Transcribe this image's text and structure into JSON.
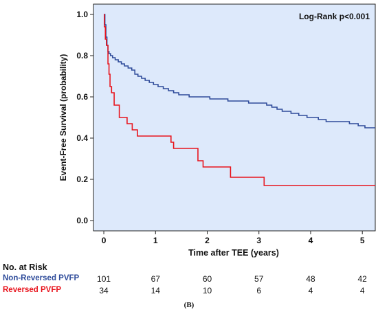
{
  "chart_data": {
    "type": "line",
    "title": "",
    "xlabel": "Time after TEE (years)",
    "ylabel": "Event-Free Survival (probability)",
    "xlim": [
      -0.2,
      5.25
    ],
    "ylim": [
      -0.05,
      1.05
    ],
    "x_ticks": [
      0,
      1,
      2,
      3,
      4,
      5
    ],
    "y_ticks": [
      0.0,
      0.2,
      0.4,
      0.6,
      0.8,
      1.0
    ],
    "y_tick_labels": [
      "0.0",
      "0.2",
      "0.4",
      "0.6",
      "0.8",
      "1.0"
    ],
    "grid": false,
    "background": "#dde9fb",
    "annotation": "Log-Rank p<0.001",
    "series": [
      {
        "name": "Non-Reversed PVFP",
        "color": "#2e4b9a",
        "x": [
          0,
          0.02,
          0.04,
          0.06,
          0.08,
          0.1,
          0.13,
          0.17,
          0.22,
          0.28,
          0.34,
          0.4,
          0.47,
          0.54,
          0.6,
          0.66,
          0.73,
          0.8,
          0.88,
          0.96,
          1.05,
          1.15,
          1.25,
          1.35,
          1.45,
          1.55,
          1.65,
          1.78,
          1.9,
          2.05,
          2.2,
          2.4,
          2.6,
          2.8,
          3.0,
          3.15,
          3.25,
          3.35,
          3.45,
          3.55,
          3.62,
          3.7,
          3.77,
          3.85,
          3.93,
          4.0,
          4.15,
          4.3,
          4.5,
          4.75,
          4.92,
          5.05,
          5.25
        ],
        "y": [
          1.0,
          0.95,
          0.89,
          0.85,
          0.82,
          0.81,
          0.8,
          0.79,
          0.78,
          0.77,
          0.76,
          0.75,
          0.74,
          0.73,
          0.71,
          0.7,
          0.69,
          0.68,
          0.67,
          0.66,
          0.65,
          0.64,
          0.63,
          0.62,
          0.61,
          0.61,
          0.6,
          0.6,
          0.6,
          0.59,
          0.59,
          0.58,
          0.58,
          0.57,
          0.57,
          0.56,
          0.55,
          0.54,
          0.53,
          0.53,
          0.52,
          0.52,
          0.51,
          0.51,
          0.5,
          0.5,
          0.49,
          0.48,
          0.48,
          0.47,
          0.46,
          0.45,
          0.45
        ]
      },
      {
        "name": "Reversed PVFP",
        "color": "#e8141d",
        "x": [
          0,
          0.01,
          0.03,
          0.05,
          0.08,
          0.1,
          0.12,
          0.15,
          0.2,
          0.3,
          0.45,
          0.55,
          0.65,
          1.3,
          1.35,
          1.75,
          1.82,
          1.92,
          2.3,
          2.45,
          3.05,
          3.1,
          5.25
        ],
        "y": [
          1.0,
          0.94,
          0.88,
          0.85,
          0.76,
          0.71,
          0.65,
          0.62,
          0.56,
          0.5,
          0.47,
          0.44,
          0.41,
          0.38,
          0.35,
          0.35,
          0.29,
          0.26,
          0.26,
          0.21,
          0.21,
          0.17,
          0.17
        ]
      }
    ]
  },
  "risk_table": {
    "title": "No. at Risk",
    "rows": [
      {
        "label": "Non-Reversed PVFP",
        "color": "#2e4b9a",
        "values": [
          101,
          67,
          60,
          57,
          48,
          42
        ]
      },
      {
        "label": "Reversed PVFP",
        "color": "#e8141d",
        "values": [
          34,
          14,
          10,
          6,
          4,
          4
        ]
      }
    ]
  },
  "panel_label": "(B)"
}
